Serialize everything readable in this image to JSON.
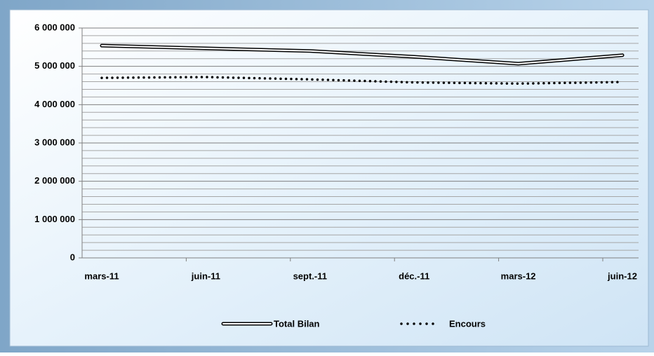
{
  "chart_data": {
    "type": "line",
    "categories": [
      "mars-11",
      "juin-11",
      "sept.-11",
      "déc.-11",
      "mars-12",
      "juin-12"
    ],
    "series": [
      {
        "name": "Total Bilan",
        "color": "#000000",
        "style": "double",
        "values": [
          5540000,
          5470000,
          5400000,
          5250000,
          5070000,
          5290000
        ]
      },
      {
        "name": "Encours",
        "color": "#000000",
        "style": "dotted",
        "values": [
          4700000,
          4720000,
          4660000,
          4580000,
          4550000,
          4590000
        ]
      }
    ],
    "ylim": [
      0,
      6000000
    ],
    "yticks": [
      {
        "value": 0,
        "label": "0"
      },
      {
        "value": 1000000,
        "label": "1 000 000"
      },
      {
        "value": 2000000,
        "label": "2 000 000"
      },
      {
        "value": 3000000,
        "label": "3 000 000"
      },
      {
        "value": 4000000,
        "label": "4 000 000"
      },
      {
        "value": 5000000,
        "label": "5 000 000"
      },
      {
        "value": 6000000,
        "label": "6 000 000"
      }
    ],
    "yminorticks": [
      200000,
      400000,
      600000,
      800000,
      1200000,
      1400000,
      1600000,
      1800000,
      2200000,
      2400000,
      2600000,
      2800000,
      3200000,
      3400000,
      3600000,
      3800000,
      4200000,
      4400000,
      4600000,
      4800000,
      5200000,
      5400000,
      5600000,
      5800000
    ],
    "grid": true,
    "legend": "bottom"
  }
}
